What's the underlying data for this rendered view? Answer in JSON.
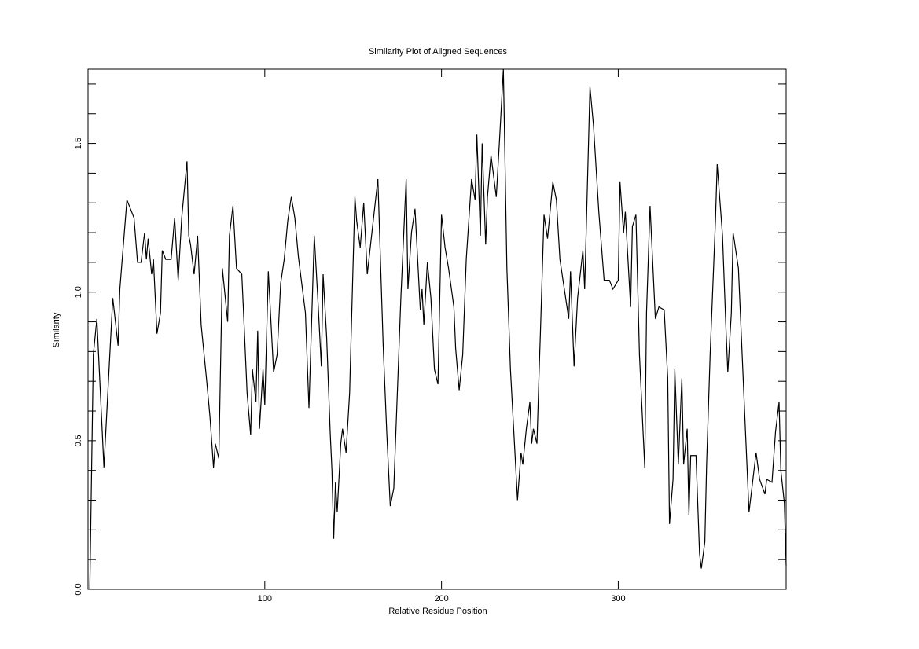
{
  "chart_data": {
    "type": "line",
    "title": "Similarity Plot of Aligned Sequences",
    "x_label": "Relative Residue Position",
    "y_label": "Similarity",
    "xlim": [
      0,
      395
    ],
    "ylim": [
      0,
      1.75
    ],
    "xticks": [
      100,
      200,
      300
    ],
    "yticks": [
      {
        "value": 0,
        "label": "0.0"
      },
      {
        "value": 0.5,
        "label": "0.5"
      },
      {
        "value": 1,
        "label": "1.0"
      },
      {
        "value": 1.5,
        "label": "1.5"
      }
    ],
    "yminorticks": [
      0.1,
      0.2,
      0.3,
      0.4,
      0.6,
      0.7,
      0.8,
      0.9,
      1.1,
      1.2,
      1.3,
      1.4,
      1.6,
      1.7
    ],
    "grid": false,
    "color": "#000000",
    "x": [
      1,
      3,
      5,
      9,
      14,
      17,
      18,
      20,
      22,
      26,
      28,
      30,
      32,
      33,
      34,
      36,
      37,
      39,
      41,
      42,
      44,
      47,
      49,
      51,
      53,
      56,
      57,
      58,
      60,
      62,
      64,
      67,
      69,
      71,
      72,
      74,
      76,
      79,
      80,
      82,
      84,
      87,
      88,
      90,
      92,
      93,
      95,
      96,
      97,
      99,
      100,
      102,
      105,
      107,
      109,
      111,
      113,
      115,
      117,
      119,
      123,
      125,
      128,
      130,
      132,
      133,
      135,
      137,
      138,
      139,
      140,
      141,
      143,
      144,
      146,
      148,
      151,
      152,
      154,
      156,
      158,
      161,
      164,
      167,
      169,
      171,
      173,
      177,
      180,
      181,
      183,
      185,
      188,
      189,
      190,
      192,
      194,
      196,
      198,
      200,
      202,
      204,
      207,
      208,
      210,
      212,
      214,
      217,
      219,
      220,
      222,
      223,
      225,
      226,
      228,
      231,
      233,
      235,
      237,
      239,
      241,
      243,
      245,
      246,
      248,
      250,
      251,
      252,
      254,
      255,
      256,
      258,
      260,
      263,
      265,
      267,
      269,
      272,
      273,
      275,
      277,
      280,
      281,
      283,
      284,
      286,
      289,
      292,
      295,
      297,
      300,
      301,
      303,
      304,
      307,
      308,
      310,
      312,
      315,
      316,
      318,
      321,
      323,
      326,
      328,
      329,
      331,
      332,
      334,
      336,
      337,
      339,
      340,
      341,
      344,
      346,
      347,
      349,
      350,
      352,
      355,
      356,
      359,
      361,
      362,
      364,
      365,
      368,
      372,
      374,
      376,
      378,
      380,
      383,
      384,
      387,
      389,
      391,
      392,
      394,
      395
    ],
    "values": [
      0,
      0.79,
      0.91,
      0.41,
      0.98,
      0.82,
      1.01,
      1.16,
      1.31,
      1.25,
      1.1,
      1.1,
      1.2,
      1.11,
      1.18,
      1.06,
      1.11,
      0.86,
      0.93,
      1.14,
      1.11,
      1.11,
      1.25,
      1.04,
      1.25,
      1.44,
      1.19,
      1.16,
      1.06,
      1.19,
      0.89,
      0.71,
      0.58,
      0.41,
      0.49,
      0.44,
      1.08,
      0.9,
      1.19,
      1.29,
      1.08,
      1.06,
      0.93,
      0.66,
      0.52,
      0.74,
      0.63,
      0.87,
      0.54,
      0.74,
      0.62,
      1.07,
      0.73,
      0.79,
      1.03,
      1.11,
      1.24,
      1.32,
      1.25,
      1.12,
      0.93,
      0.61,
      1.19,
      0.98,
      0.75,
      1.06,
      0.85,
      0.53,
      0.4,
      0.17,
      0.36,
      0.26,
      0.49,
      0.54,
      0.46,
      0.66,
      1.32,
      1.24,
      1.15,
      1.3,
      1.06,
      1.22,
      1.38,
      0.82,
      0.53,
      0.28,
      0.34,
      0.98,
      1.38,
      1.01,
      1.2,
      1.28,
      0.94,
      1.01,
      0.89,
      1.1,
      0.98,
      0.74,
      0.69,
      1.26,
      1.15,
      1.08,
      0.95,
      0.81,
      0.67,
      0.79,
      1.11,
      1.38,
      1.31,
      1.53,
      1.19,
      1.5,
      1.16,
      1.32,
      1.46,
      1.32,
      1.53,
      1.75,
      1.08,
      0.74,
      0.52,
      0.3,
      0.46,
      0.42,
      0.54,
      0.63,
      0.49,
      0.54,
      0.49,
      0.69,
      0.87,
      1.26,
      1.18,
      1.37,
      1.31,
      1.11,
      1.03,
      0.91,
      1.07,
      0.75,
      0.98,
      1.14,
      1.01,
      1.46,
      1.69,
      1.56,
      1.27,
      1.04,
      1.04,
      1.01,
      1.04,
      1.37,
      1.2,
      1.27,
      0.95,
      1.22,
      1.26,
      0.79,
      0.41,
      0.93,
      1.29,
      0.91,
      0.95,
      0.94,
      0.71,
      0.22,
      0.37,
      0.74,
      0.42,
      0.71,
      0.42,
      0.54,
      0.25,
      0.45,
      0.45,
      0.12,
      0.07,
      0.16,
      0.42,
      0.79,
      1.24,
      1.43,
      1.19,
      0.87,
      0.73,
      0.93,
      1.2,
      1.08,
      0.53,
      0.26,
      0.36,
      0.46,
      0.37,
      0.32,
      0.37,
      0.36,
      0.53,
      0.63,
      0.4,
      0.29,
      0.08
    ]
  }
}
